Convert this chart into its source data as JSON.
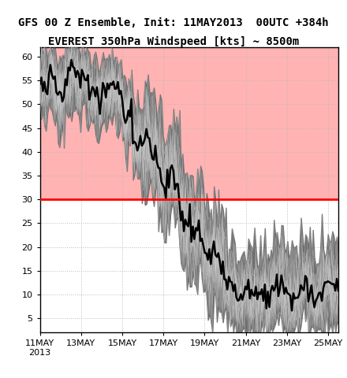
{
  "title1": "GFS 00 Z Ensemble, Init: 11MAY2013  00UTC +384h",
  "title2": "EVEREST 350hPa Windspeed [kts] ~ 8500m",
  "xlim_days": [
    0,
    14.5
  ],
  "ylim": [
    2,
    62
  ],
  "threshold": 30,
  "threshold_color": "#ff0000",
  "fill_above_color": "#ffb3b3",
  "ensemble_fill_color": "#707070",
  "ensemble_fill_alpha": 1.0,
  "ensemble_line_color": "#cccccc",
  "ensemble_line_alpha": 0.5,
  "mean_color": "#000000",
  "mean_linewidth": 1.8,
  "grid_color": "#bbbbbb",
  "background_white": "#ffffff",
  "xtick_labels": [
    "11MAY\n2013",
    "13MAY",
    "15MAY",
    "17MAY",
    "19MAY",
    "21MAY",
    "23MAY",
    "25MAY"
  ],
  "xtick_positions": [
    0,
    2,
    4,
    6,
    8,
    10,
    12,
    14
  ],
  "ytick_positions": [
    5,
    10,
    15,
    20,
    25,
    30,
    35,
    40,
    45,
    50,
    55,
    60
  ],
  "title_fontsize": 10,
  "tick_fontsize": 8,
  "n_ensemble": 21,
  "n_points": 200
}
